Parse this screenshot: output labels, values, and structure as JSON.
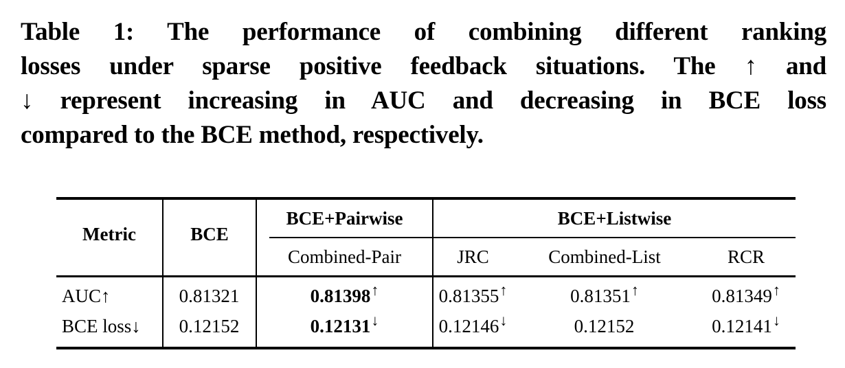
{
  "caption": {
    "lines": [
      "Table 1: The performance of combining different ranking",
      "losses under sparse positive feedback situations. The ↑ and",
      "↓ represent increasing in AUC and decreasing in BCE loss",
      "compared to the BCE method, respectively."
    ]
  },
  "table": {
    "headers": {
      "metric": "Metric",
      "bce": "BCE",
      "pairwise_group": "BCE+Pairwise",
      "listwise_group": "BCE+Listwise",
      "combined_pair": "Combined-Pair",
      "jrc": "JRC",
      "combined_list": "Combined-List",
      "rcr": "RCR"
    },
    "rows": [
      {
        "label": "AUC↑",
        "bce": {
          "v": "0.81321",
          "arrow": ""
        },
        "pair": {
          "v": "0.81398",
          "arrow": "↑"
        },
        "jrc": {
          "v": "0.81355",
          "arrow": "↑"
        },
        "clist": {
          "v": "0.81351",
          "arrow": "↑"
        },
        "rcr": {
          "v": "0.81349",
          "arrow": "↑"
        }
      },
      {
        "label": "BCE loss↓",
        "bce": {
          "v": "0.12152",
          "arrow": ""
        },
        "pair": {
          "v": "0.12131",
          "arrow": "↓"
        },
        "jrc": {
          "v": "0.12146",
          "arrow": "↓"
        },
        "clist": {
          "v": "0.12152",
          "arrow": ""
        },
        "rcr": {
          "v": "0.12141",
          "arrow": "↓"
        }
      }
    ]
  },
  "colors": {
    "text": "#000000",
    "background": "#ffffff",
    "rule": "#000000"
  }
}
